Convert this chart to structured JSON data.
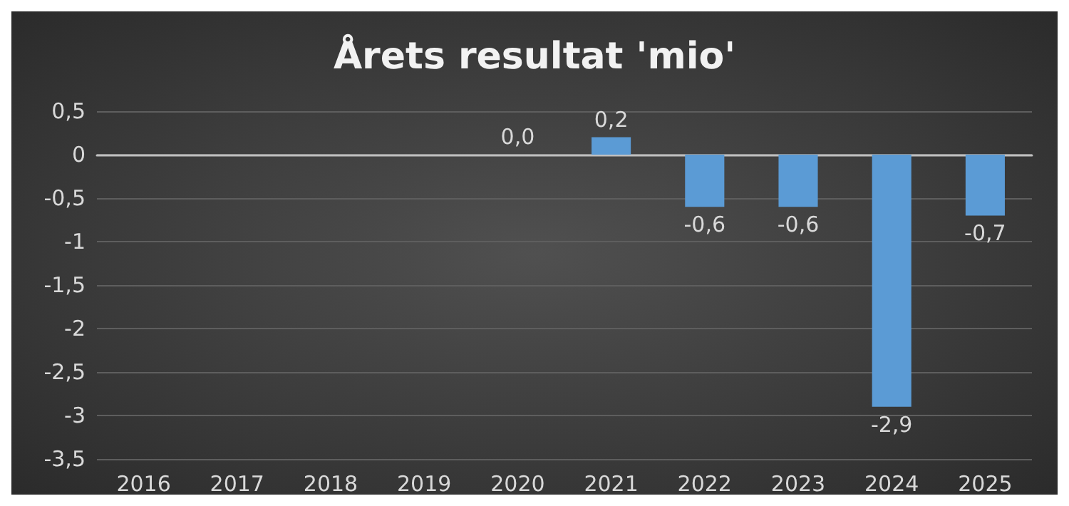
{
  "chart_data": {
    "type": "bar",
    "title": "Årets resultat 'mio'",
    "categories": [
      "2016",
      "2017",
      "2018",
      "2019",
      "2020",
      "2021",
      "2022",
      "2023",
      "2024",
      "2025"
    ],
    "values": [
      null,
      null,
      null,
      null,
      0.0,
      0.2,
      -0.6,
      -0.6,
      -2.9,
      -0.7
    ],
    "value_labels": [
      null,
      null,
      null,
      null,
      "0,0",
      "0,2",
      "-0,6",
      "-0,6",
      "-2,9",
      "-0,7"
    ],
    "color": "#5b9bd5",
    "ylim": [
      -3.5,
      0.5
    ],
    "yticks": [
      {
        "value": 0.5,
        "label": "0,5"
      },
      0,
      {
        "value": -0.5,
        "label": "-0,5"
      },
      -1,
      {
        "value": -1.5,
        "label": "-1,5"
      },
      -2,
      {
        "value": -2.5,
        "label": "-2,5"
      },
      -3,
      {
        "value": -3.5,
        "label": "-3,5"
      }
    ],
    "grid": "y"
  }
}
